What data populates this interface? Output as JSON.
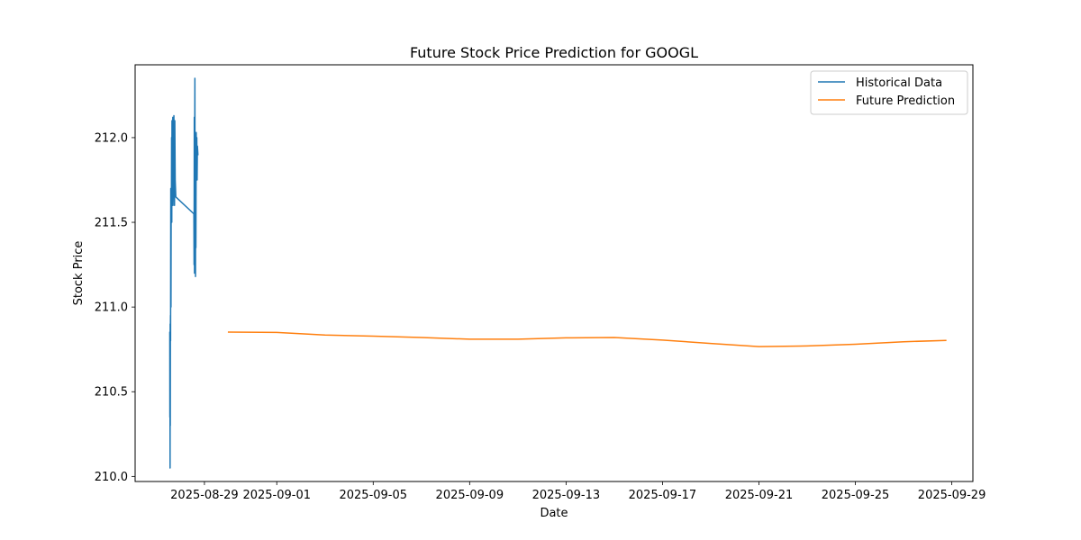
{
  "chart_data": {
    "type": "line",
    "title": "Future Stock Price Prediction for GOOGL",
    "xlabel": "Date",
    "ylabel": "Stock Price",
    "xlim": [
      "2025-08-26T03:00",
      "2025-09-29T21:00"
    ],
    "ylim": [
      209.97,
      212.43
    ],
    "x_ticks": [
      "2025-08-29",
      "2025-09-01",
      "2025-09-05",
      "2025-09-09",
      "2025-09-13",
      "2025-09-17",
      "2025-09-21",
      "2025-09-25",
      "2025-09-29"
    ],
    "y_ticks": [
      210.0,
      210.5,
      211.0,
      211.5,
      212.0
    ],
    "y_tick_labels": [
      "210.0",
      "210.5",
      "211.0",
      "211.5",
      "212.0"
    ],
    "grid": false,
    "legend_position": "top-right",
    "series": [
      {
        "name": "Historical Data",
        "color": "#1f77b4",
        "points": [
          [
            "2025-08-27T13:30",
            210.85
          ],
          [
            "2025-08-27T13:36",
            210.35
          ],
          [
            "2025-08-27T13:42",
            210.7
          ],
          [
            "2025-08-27T13:48",
            210.05
          ],
          [
            "2025-08-27T13:54",
            210.9
          ],
          [
            "2025-08-27T14:00",
            210.3
          ],
          [
            "2025-08-27T14:06",
            210.85
          ],
          [
            "2025-08-27T14:12",
            210.95
          ],
          [
            "2025-08-27T14:18",
            210.8
          ],
          [
            "2025-08-27T14:24",
            211.25
          ],
          [
            "2025-08-27T14:30",
            211.7
          ],
          [
            "2025-08-27T14:42",
            211.0
          ],
          [
            "2025-08-27T14:54",
            211.65
          ],
          [
            "2025-08-27T15:06",
            211.55
          ],
          [
            "2025-08-27T15:18",
            212.0
          ],
          [
            "2025-08-27T15:30",
            211.5
          ],
          [
            "2025-08-27T15:42",
            212.1
          ],
          [
            "2025-08-27T15:54",
            211.6
          ],
          [
            "2025-08-27T16:06",
            212.0
          ],
          [
            "2025-08-27T16:18",
            211.65
          ],
          [
            "2025-08-27T16:30",
            212.12
          ],
          [
            "2025-08-27T16:42",
            211.6
          ],
          [
            "2025-08-27T17:00",
            212.05
          ],
          [
            "2025-08-27T17:18",
            211.65
          ],
          [
            "2025-08-27T17:36",
            212.13
          ],
          [
            "2025-08-27T17:54",
            211.7
          ],
          [
            "2025-08-27T18:12",
            211.6
          ],
          [
            "2025-08-27T18:30",
            212.1
          ],
          [
            "2025-08-27T18:54",
            211.75
          ],
          [
            "2025-08-27T19:30",
            211.65
          ],
          [
            "2025-08-28T13:30",
            211.55
          ],
          [
            "2025-08-28T13:42",
            211.25
          ],
          [
            "2025-08-28T13:54",
            212.12
          ],
          [
            "2025-08-28T14:06",
            211.2
          ],
          [
            "2025-08-28T14:18",
            211.9
          ],
          [
            "2025-08-28T14:30",
            212.35
          ],
          [
            "2025-08-28T14:42",
            211.3
          ],
          [
            "2025-08-28T14:54",
            211.95
          ],
          [
            "2025-08-28T15:06",
            211.18
          ],
          [
            "2025-08-28T15:18",
            212.02
          ],
          [
            "2025-08-28T15:30",
            211.35
          ],
          [
            "2025-08-28T15:48",
            212.03
          ],
          [
            "2025-08-28T16:06",
            211.8
          ],
          [
            "2025-08-28T16:24",
            212.0
          ],
          [
            "2025-08-28T16:42",
            211.75
          ],
          [
            "2025-08-28T17:00",
            211.95
          ],
          [
            "2025-08-28T17:30",
            211.9
          ]
        ]
      },
      {
        "name": "Future Prediction",
        "color": "#ff7f0e",
        "points": [
          [
            "2025-08-30",
            210.852
          ],
          [
            "2025-09-01",
            210.85
          ],
          [
            "2025-09-03",
            210.835
          ],
          [
            "2025-09-05",
            210.828
          ],
          [
            "2025-09-07",
            210.82
          ],
          [
            "2025-09-09",
            210.81
          ],
          [
            "2025-09-11",
            210.81
          ],
          [
            "2025-09-13",
            210.818
          ],
          [
            "2025-09-15",
            210.82
          ],
          [
            "2025-09-17",
            210.805
          ],
          [
            "2025-09-19",
            210.785
          ],
          [
            "2025-09-21",
            210.766
          ],
          [
            "2025-09-23",
            210.77
          ],
          [
            "2025-09-25",
            210.78
          ],
          [
            "2025-09-27",
            210.795
          ],
          [
            "2025-09-28T18:00",
            210.803
          ]
        ]
      }
    ]
  }
}
